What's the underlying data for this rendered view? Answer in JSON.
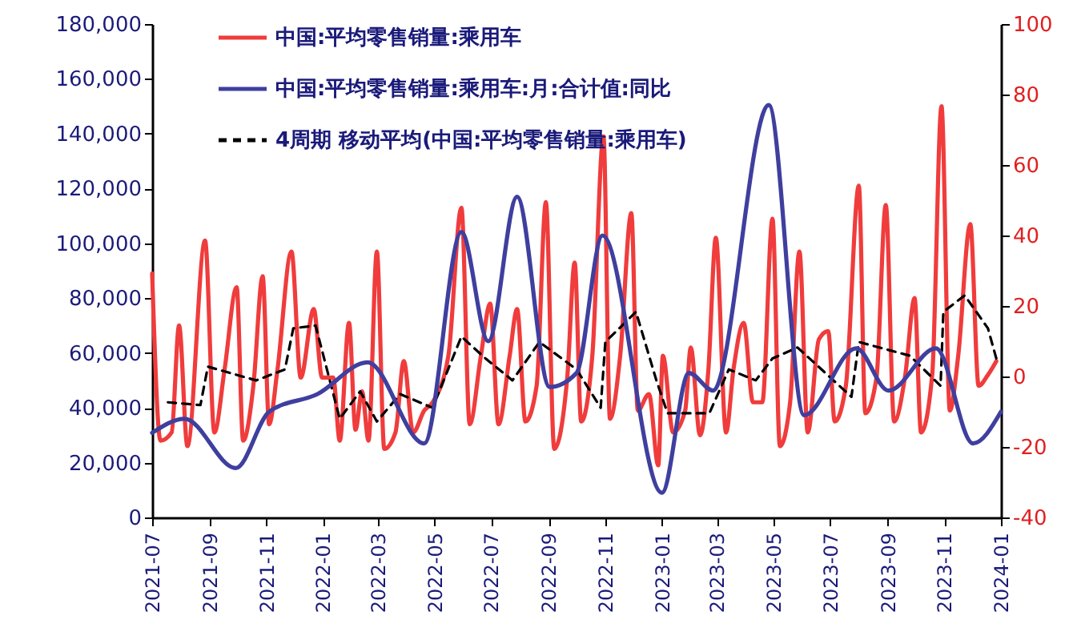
{
  "chart_data": {
    "type": "line",
    "xlim": [
      "2021-07",
      "2024-01"
    ],
    "xticks": [
      "2021-07",
      "2021-09",
      "2021-11",
      "2022-01",
      "2022-03",
      "2022-05",
      "2022-07",
      "2022-09",
      "2022-11",
      "2023-01",
      "2023-03",
      "2023-05",
      "2023-07",
      "2023-09",
      "2023-11",
      "2024-01"
    ],
    "ylim": [
      0,
      180000
    ],
    "yticks": [
      0,
      {
        "value": 20000,
        "label": "20,000"
      },
      {
        "value": 40000,
        "label": "40,000"
      },
      {
        "value": 60000,
        "label": "60,000"
      },
      {
        "value": 80000,
        "label": "80,000"
      },
      {
        "value": 100000,
        "label": "100,000"
      },
      {
        "value": 120000,
        "label": "120,000"
      },
      {
        "value": 140000,
        "label": "140,000"
      },
      {
        "value": 160000,
        "label": "160,000"
      },
      {
        "value": 180000,
        "label": "180,000"
      }
    ],
    "y2lim": [
      -40,
      100
    ],
    "y2ticks": [
      -40,
      -20,
      0,
      20,
      40,
      60,
      80,
      100
    ],
    "legend": "top",
    "grid": false,
    "series": [
      {
        "name": "中国:平均零售销量:乘用车",
        "color": "#f03c3c",
        "line_style": "solid",
        "x": [
          "2021-07-01",
          "2021-07-10",
          "2021-07-22",
          "2021-07-30",
          "2021-08-08",
          "2021-08-27",
          "2021-09-06",
          "2021-09-17",
          "2021-09-30",
          "2021-10-07",
          "2021-10-18",
          "2021-10-28",
          "2021-11-04",
          "2021-11-13",
          "2021-11-28",
          "2021-12-08",
          "2021-12-22",
          "2021-12-31",
          "2022-01-12",
          "2022-01-19",
          "2022-01-29",
          "2022-02-05",
          "2022-02-12",
          "2022-02-19",
          "2022-02-28",
          "2022-03-08",
          "2022-03-20",
          "2022-03-29",
          "2022-04-08",
          "2022-04-20",
          "2022-04-29",
          "2022-05-16",
          "2022-05-30",
          "2022-06-08",
          "2022-06-20",
          "2022-06-30",
          "2022-07-09",
          "2022-07-21",
          "2022-07-29",
          "2022-08-07",
          "2022-08-19",
          "2022-08-29",
          "2022-09-07",
          "2022-09-21",
          "2022-09-29",
          "2022-10-06",
          "2022-10-18",
          "2022-10-30",
          "2022-11-06",
          "2022-11-17",
          "2022-11-29",
          "2022-12-06",
          "2022-12-18",
          "2022-12-28",
          "2023-01-02",
          "2023-01-13",
          "2023-01-26",
          "2023-02-01",
          "2023-02-11",
          "2023-02-20",
          "2023-02-28",
          "2023-03-11",
          "2023-03-19",
          "2023-03-30",
          "2023-04-09",
          "2023-04-19",
          "2023-04-30",
          "2023-05-08",
          "2023-05-19",
          "2023-05-29",
          "2023-06-07",
          "2023-06-19",
          "2023-06-29",
          "2023-07-06",
          "2023-07-18",
          "2023-08-01",
          "2023-08-08",
          "2023-08-20",
          "2023-08-30",
          "2023-09-08",
          "2023-09-20",
          "2023-09-30",
          "2023-10-07",
          "2023-10-19",
          "2023-10-29",
          "2023-11-07",
          "2023-11-16",
          "2023-11-29",
          "2023-12-08",
          "2023-12-18",
          "2023-12-27"
        ],
        "values": [
          89000,
          28000,
          31000,
          70000,
          26000,
          101000,
          31000,
          54000,
          84000,
          28000,
          48000,
          88000,
          34000,
          54000,
          97000,
          51000,
          76000,
          51000,
          51000,
          28000,
          71000,
          32000,
          46000,
          28000,
          97000,
          25000,
          31000,
          57000,
          31000,
          39000,
          42000,
          59000,
          113000,
          34000,
          59000,
          78000,
          34000,
          59000,
          76000,
          35000,
          48000,
          115000,
          25000,
          51000,
          93000,
          35000,
          59000,
          139000,
          36000,
          59000,
          111000,
          39000,
          45000,
          19000,
          59000,
          31000,
          39000,
          62000,
          30000,
          54000,
          102000,
          31000,
          54000,
          71000,
          42000,
          42000,
          109000,
          26000,
          42000,
          97000,
          31000,
          65000,
          68000,
          35000,
          48000,
          121000,
          38000,
          51000,
          114000,
          35000,
          52000,
          80000,
          31000,
          52000,
          150000,
          39000,
          59000,
          107000,
          48000,
          52000,
          57000
        ]
      },
      {
        "name": "中国:平均零售销量:乘用车:月:合计值:同比",
        "color": "#3f3f9f",
        "line_style": "solid",
        "axis": "y2",
        "x": [
          "2021-07-01",
          "2021-08-05",
          "2021-09-29",
          "2021-11-04",
          "2021-12-26",
          "2022-02-18",
          "2022-04-20",
          "2022-05-30",
          "2022-06-28",
          "2022-07-29",
          "2022-09-02",
          "2022-10-01",
          "2022-10-29",
          "2023-01-01",
          "2023-01-30",
          "2023-02-25",
          "2023-04-26",
          "2023-06-03",
          "2023-07-29",
          "2023-09-02",
          "2023-10-23",
          "2023-12-02",
          "2024-01-01"
        ],
        "values": [
          -16,
          -12,
          -26,
          -10,
          -5,
          4,
          -19,
          41,
          10,
          51,
          -3,
          1,
          40,
          -33,
          1,
          -4,
          77,
          -11,
          8,
          -4,
          8,
          -19,
          -10
        ]
      },
      {
        "name": "4周期 移动平均(中国:平均零售销量:乘用车)",
        "color": "#000000",
        "line_style": "dashed",
        "x": [
          "2021-07-18",
          "2021-08-22",
          "2021-08-30",
          "2021-10-21",
          "2021-11-21",
          "2021-11-30",
          "2021-12-24",
          "2022-01-19",
          "2022-02-10",
          "2022-02-28",
          "2022-03-25",
          "2022-04-29",
          "2022-05-30",
          "2022-06-25",
          "2022-07-24",
          "2022-08-22",
          "2022-10-01",
          "2022-10-27",
          "2022-11-01",
          "2022-12-04",
          "2022-12-26",
          "2023-01-07",
          "2023-02-21",
          "2023-03-14",
          "2023-04-12",
          "2023-04-30",
          "2023-05-27",
          "2023-07-24",
          "2023-08-01",
          "2023-09-25",
          "2023-10-28",
          "2023-10-31",
          "2023-11-23",
          "2023-12-18",
          "2023-12-27"
        ],
        "values": [
          42000,
          41000,
          55000,
          50000,
          54000,
          69000,
          70000,
          36000,
          46000,
          35000,
          45000,
          40000,
          66000,
          58000,
          50000,
          64000,
          54000,
          40000,
          64000,
          75000,
          50000,
          38000,
          38000,
          54000,
          50000,
          58000,
          62000,
          44000,
          64000,
          59000,
          48000,
          75000,
          81000,
          69000,
          58000
        ]
      }
    ]
  }
}
